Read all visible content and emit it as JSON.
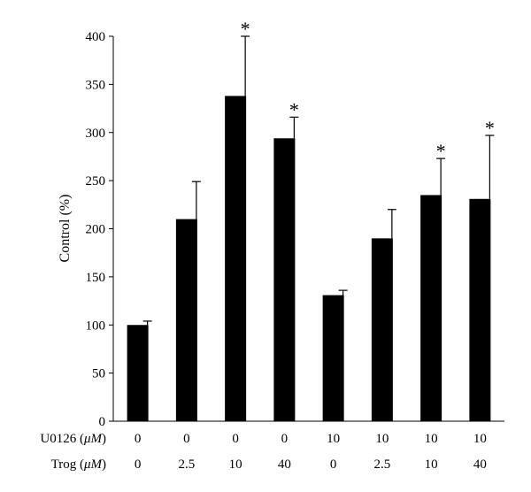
{
  "chart_data": {
    "type": "bar",
    "ylabel": "Control (%)",
    "ylim": [
      0,
      400
    ],
    "yticks": [
      0,
      50,
      100,
      150,
      200,
      250,
      300,
      350,
      400
    ],
    "grid": false,
    "bar_color": "#000000",
    "row_labels": [
      {
        "prefix": "U0126 (",
        "unit": "μM",
        "suffix": ")"
      },
      {
        "prefix": "Trog (",
        "unit": "μM",
        "suffix": ")"
      }
    ],
    "categories": [
      {
        "u0126": "0",
        "trog": "0"
      },
      {
        "u0126": "0",
        "trog": "2.5"
      },
      {
        "u0126": "0",
        "trog": "10"
      },
      {
        "u0126": "0",
        "trog": "40"
      },
      {
        "u0126": "10",
        "trog": "0"
      },
      {
        "u0126": "10",
        "trog": "2.5"
      },
      {
        "u0126": "10",
        "trog": "10"
      },
      {
        "u0126": "10",
        "trog": "40"
      }
    ],
    "values": [
      100,
      210,
      338,
      294,
      131,
      190,
      235,
      231
    ],
    "errors": [
      4,
      39,
      62,
      22,
      5,
      30,
      38,
      66
    ],
    "significance": [
      "",
      "",
      "*",
      "*",
      "",
      "",
      "*",
      "*"
    ]
  }
}
